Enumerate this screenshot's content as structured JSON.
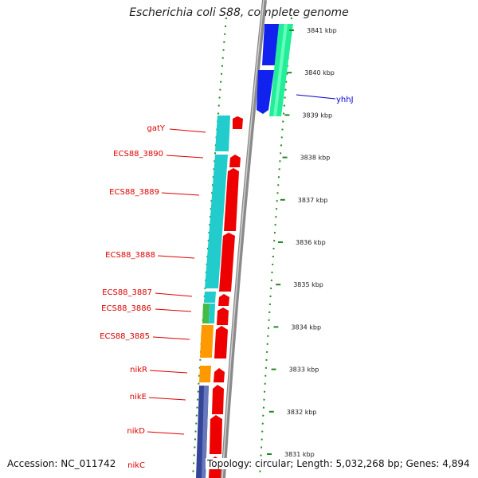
{
  "title": "Escherichia coli S88, complete genome",
  "footer": {
    "accession": "Accession: NC_011742",
    "topology": "Topology: circular; Length: 5,032,268 bp; Genes: 4,894"
  },
  "kbp_ticks": [
    {
      "kbp": 3841,
      "label": "3841 kbp"
    },
    {
      "kbp": 3840,
      "label": "3840 kbp"
    },
    {
      "kbp": 3839,
      "label": "3839 kbp"
    },
    {
      "kbp": 3838,
      "label": "3838 kbp"
    },
    {
      "kbp": 3837,
      "label": "3837 kbp"
    },
    {
      "kbp": 3836,
      "label": "3836 kbp"
    },
    {
      "kbp": 3835,
      "label": "3835 kbp"
    },
    {
      "kbp": 3834,
      "label": "3834 kbp"
    },
    {
      "kbp": 3833,
      "label": "3833 kbp"
    },
    {
      "kbp": 3832,
      "label": "3832 kbp"
    },
    {
      "kbp": 3831,
      "label": "3831 kbp"
    }
  ],
  "gene_labels": [
    {
      "text": "yhhJ",
      "color": "#0000cc"
    },
    {
      "text": "gatY",
      "color": "#dd0000"
    },
    {
      "text": "ECS88_3890",
      "color": "#dd0000"
    },
    {
      "text": "ECS88_3889",
      "color": "#dd0000"
    },
    {
      "text": "ECS88_3888",
      "color": "#dd0000"
    },
    {
      "text": "ECS88_3887",
      "color": "#dd0000"
    },
    {
      "text": "ECS88_3886",
      "color": "#dd0000"
    },
    {
      "text": "ECS88_3885",
      "color": "#dd0000"
    },
    {
      "text": "nikR",
      "color": "#dd0000"
    },
    {
      "text": "nikE",
      "color": "#dd0000"
    },
    {
      "text": "nikD",
      "color": "#dd0000"
    },
    {
      "text": "nikC",
      "color": "#dd0000"
    }
  ],
  "colors": {
    "backbone": "#8a8a8a",
    "dotted": "#228822",
    "cds_forward": "#ee0000",
    "cog_cyan": "#22cccc",
    "cog_green": "#44bb44",
    "cog_orange": "#ff9900",
    "cog_navy": "#334499",
    "cog_blue": "#1122ee",
    "cog_spring": "#22ee99"
  }
}
